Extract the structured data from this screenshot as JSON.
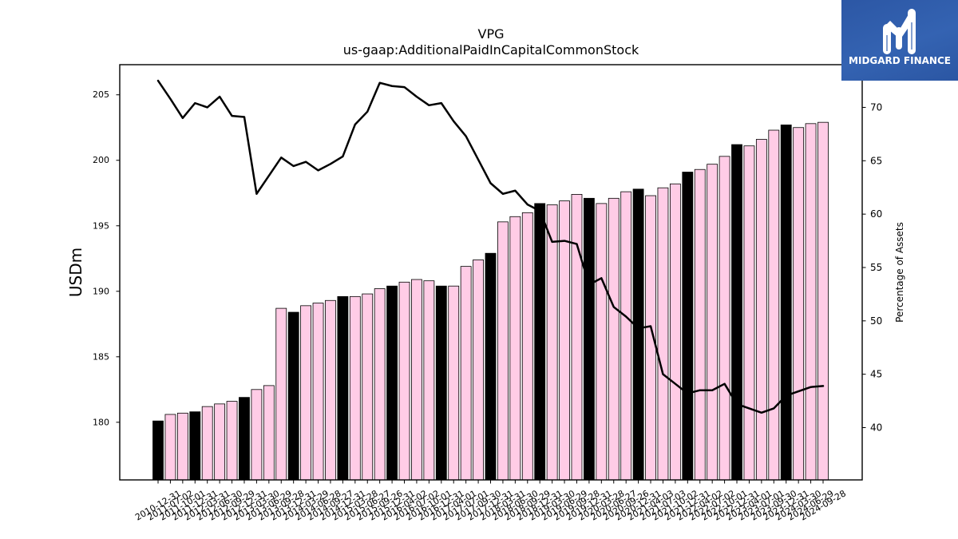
{
  "logo": {
    "name": "MIDGARD FINANCE",
    "icon": "midgard-logo-icon",
    "background": "#2f5ba9"
  },
  "chart_data": {
    "type": "bar",
    "title": "VPG",
    "subtitle": "us-gaap:AdditionalPaidInCapitalCommonStock",
    "xlabel": "",
    "ylabel": "USDm",
    "ylabel_right": "Percentage of Assets",
    "ylim": [
      175.6,
      207.3
    ],
    "ylim_right": [
      35.1,
      74.0
    ],
    "yticks": [
      180,
      185,
      190,
      195,
      200,
      205
    ],
    "yticks_right": [
      40,
      45,
      50,
      55,
      60,
      65,
      70
    ],
    "grid": false,
    "legend": "none",
    "categories": [
      "2010-12-31",
      "2011-07-02",
      "2011-10-01",
      "2011-12-31",
      "2012-03-31",
      "2012-06-30",
      "2012-09-29",
      "2012-12-31",
      "2013-03-30",
      "2013-06-29",
      "2013-09-28",
      "2013-12-31",
      "2014-03-29",
      "2014-06-28",
      "2014-09-27",
      "2014-12-31",
      "2015-03-28",
      "2015-06-27",
      "2015-09-26",
      "2015-12-31",
      "2016-04-02",
      "2016-07-02",
      "2016-10-01",
      "2016-12-31",
      "2017-04-01",
      "2017-07-01",
      "2017-09-30",
      "2017-12-31",
      "2018-03-31",
      "2018-06-30",
      "2018-09-29",
      "2018-12-31",
      "2019-03-30",
      "2019-06-29",
      "2019-09-28",
      "2019-12-31",
      "2020-03-28",
      "2020-06-27",
      "2020-09-26",
      "2020-12-31",
      "2021-04-03",
      "2021-07-03",
      "2021-10-02",
      "2021-12-31",
      "2022-04-02",
      "2022-07-02",
      "2022-10-01",
      "2022-12-31",
      "2023-04-01",
      "2023-07-01",
      "2023-09-30",
      "2023-12-31",
      "2024-03-30",
      "2024-06-29",
      "2024-09-28"
    ],
    "series": [
      {
        "type": "bar",
        "y_axis": "left",
        "values": [
          180.1,
          180.6,
          180.7,
          180.8,
          181.2,
          181.4,
          181.6,
          181.9,
          182.5,
          182.8,
          188.7,
          188.4,
          188.9,
          189.1,
          189.3,
          189.6,
          189.6,
          189.8,
          190.2,
          190.4,
          190.7,
          190.9,
          190.8,
          190.4,
          190.4,
          191.9,
          192.4,
          192.9,
          195.3,
          195.7,
          196.0,
          196.7,
          196.6,
          196.9,
          197.4,
          197.1,
          196.7,
          197.1,
          197.6,
          197.8,
          197.3,
          197.9,
          198.2,
          199.1,
          199.3,
          199.7,
          200.3,
          201.2,
          201.1,
          201.6,
          202.3,
          202.7,
          202.5,
          202.8,
          202.9
        ]
      },
      {
        "type": "line",
        "y_axis": "right",
        "values": [
          72.5,
          70.8,
          69.0,
          70.4,
          70.0,
          71.0,
          69.2,
          69.1,
          61.9,
          63.6,
          65.3,
          64.5,
          64.9,
          64.1,
          64.7,
          65.4,
          68.4,
          69.6,
          72.3,
          72.0,
          71.9,
          71.0,
          70.2,
          70.4,
          68.7,
          67.3,
          65.1,
          62.9,
          61.9,
          62.2,
          60.9,
          60.3,
          57.4,
          57.5,
          57.2,
          53.4,
          54.0,
          51.3,
          50.4,
          49.3,
          49.5,
          45.0,
          44.1,
          43.2,
          43.5,
          43.5,
          44.1,
          42.2,
          41.8,
          41.4,
          41.8,
          43.0,
          43.4,
          43.8,
          43.9
        ]
      }
    ],
    "colors": {
      "bar": "#ffcce6",
      "year_end_bar": "#000000",
      "bar_edge": "#000000",
      "line": "#000000"
    }
  }
}
